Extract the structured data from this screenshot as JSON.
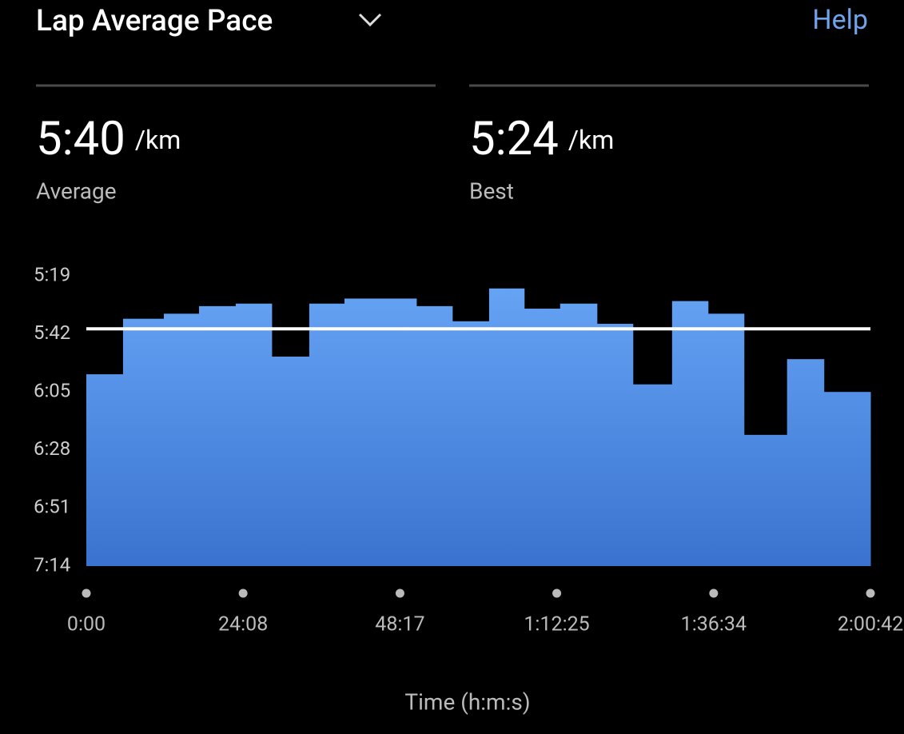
{
  "header": {
    "title": "Lap Average Pace",
    "help": "Help"
  },
  "stats": [
    {
      "value": "5:40",
      "unit": "/km",
      "label": "Average"
    },
    {
      "value": "5:24",
      "unit": "/km",
      "label": "Best"
    }
  ],
  "chart_data": {
    "type": "histogram",
    "x_label": "Time (h:m:s)",
    "bins": [
      0,
      339,
      716,
      1041,
      1380,
      1712,
      2059,
      2384,
      3048,
      3380,
      3720,
      4044,
      4376,
      4716,
      5048,
      5410,
      5742,
      6074,
      6472,
      6812,
      7242
    ],
    "values": [
      358,
      336,
      334,
      331,
      330,
      351,
      330,
      328,
      331,
      337,
      324,
      332,
      330,
      338,
      362,
      329,
      334,
      382,
      352,
      365
    ],
    "average_line": 340,
    "color_top": "#67a5f6",
    "color_bottom": "#3a73cf",
    "line_color": "#ffffff",
    "xlim": [
      0,
      7242
    ],
    "xticks": [
      {
        "value": 0,
        "label": "0:00"
      },
      {
        "value": 1448,
        "label": "24:08"
      },
      {
        "value": 2897,
        "label": "48:17"
      },
      {
        "value": 4345,
        "label": "1:12:25"
      },
      {
        "value": 5794,
        "label": "1:36:34"
      },
      {
        "value": 7242,
        "label": "2:00:42"
      }
    ],
    "ylim": [
      434,
      319
    ],
    "yticks": [
      {
        "value": 319,
        "label": "5:19"
      },
      {
        "value": 342,
        "label": "5:42"
      },
      {
        "value": 365,
        "label": "6:05"
      },
      {
        "value": 388,
        "label": "6:28"
      },
      {
        "value": 411,
        "label": "6:51"
      },
      {
        "value": 434,
        "label": "7:14"
      }
    ]
  }
}
